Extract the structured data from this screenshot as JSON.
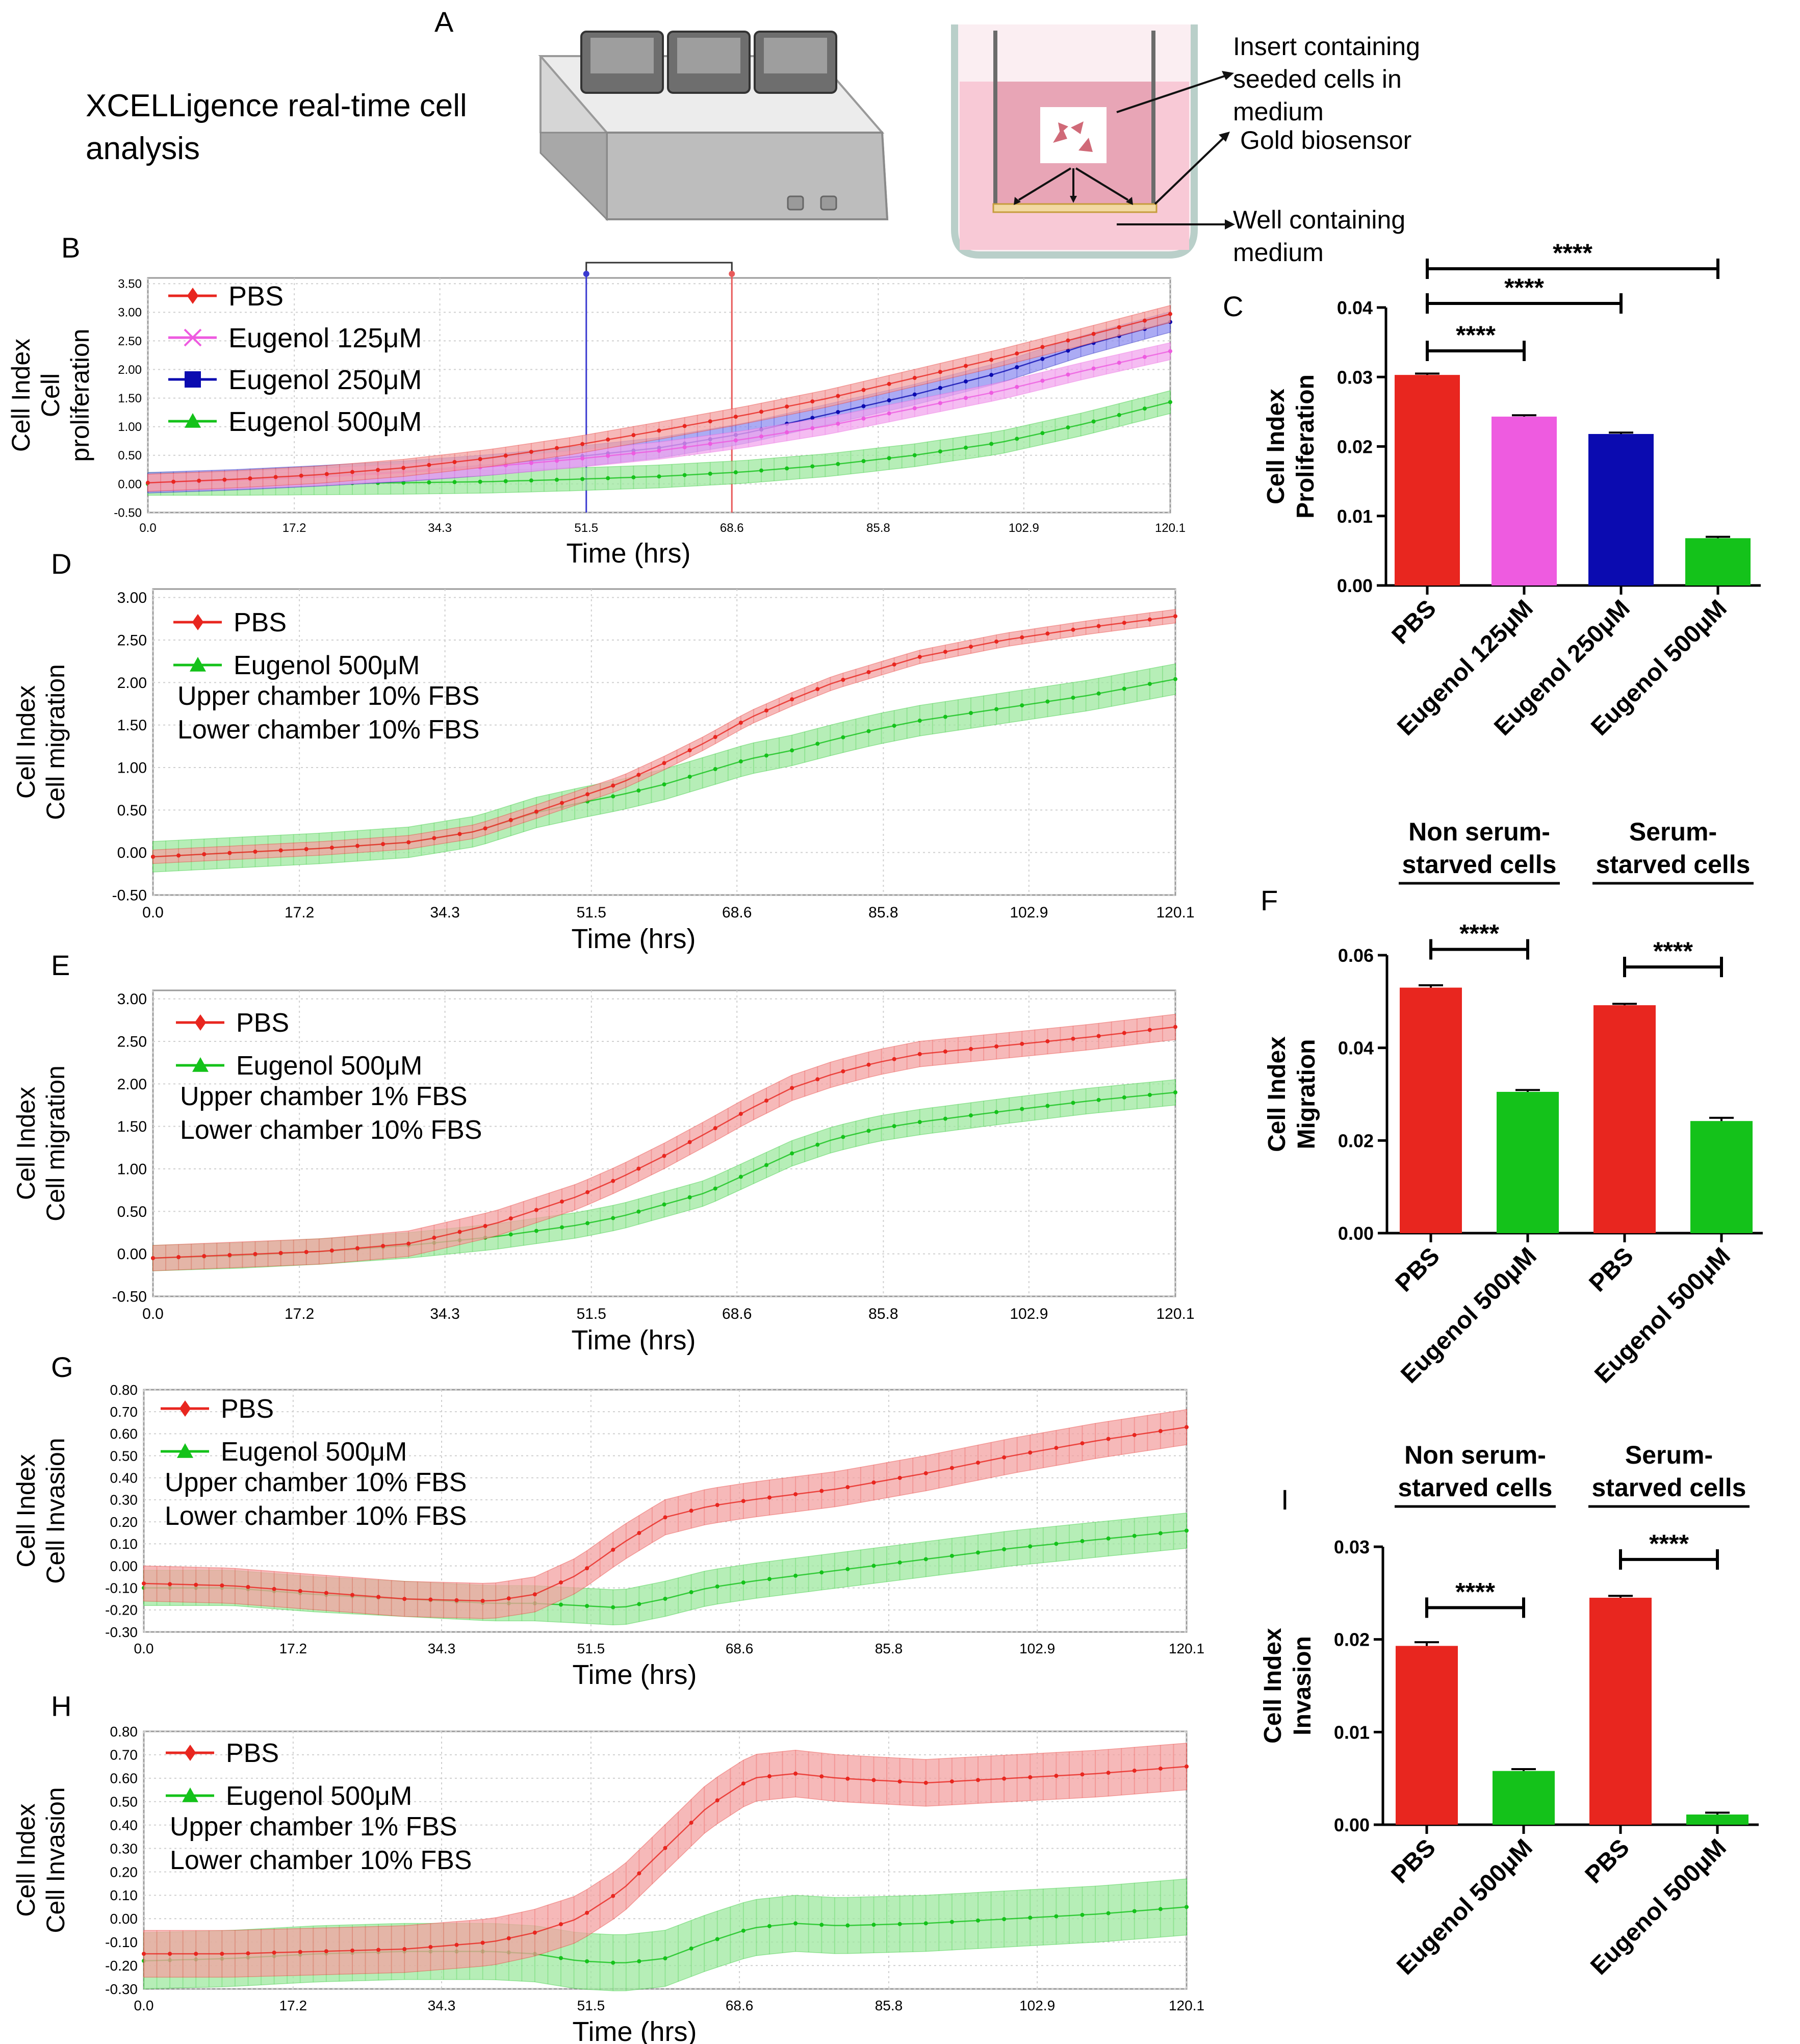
{
  "panel_a": {
    "letter": "A",
    "title_line1": "XCELLigence real-time cell",
    "title_line2": "analysis",
    "label_insert_1": "Insert containing",
    "label_insert_2": "seeded cells in",
    "label_insert_3": "medium",
    "label_gold": "Gold biosensor",
    "label_well_1": "Well containing",
    "label_well_2": "medium"
  },
  "colors": {
    "pbs": "#e8261f",
    "e125": "#ee5be0",
    "e250": "#0b0bb0",
    "e500": "#14c21a",
    "pbs_band": "#f3a2a2",
    "e125_band": "#f2a6ee",
    "e250_band": "#8f8ff0",
    "e500_band": "#9ee89f"
  },
  "chart_data": [
    {
      "id": "B",
      "type": "line",
      "letter": "B",
      "ylabel_1": "Cell Index",
      "ylabel_2": "Cell",
      "ylabel_3": "proliferation",
      "xlabel": "Time (hrs)",
      "xticks": [
        "0.0",
        "17.2",
        "34.3",
        "51.5",
        "68.6",
        "85.8",
        "102.9",
        "120.1"
      ],
      "yticks": [
        "3.50",
        "3.00",
        "2.50",
        "2.00",
        "1.50",
        "1.00",
        "0.50",
        "0.00",
        "-0.50"
      ],
      "xlim": [
        0,
        120.1
      ],
      "ylim": [
        -0.5,
        3.6
      ],
      "markers_x": [
        51.5,
        68.6
      ],
      "legend": [
        "PBS",
        "Eugenol 125μM",
        "Eugenol 250μM",
        "Eugenol 500μM"
      ],
      "notes": [],
      "series": [
        {
          "name": "PBS",
          "x": [
            0,
            10,
            20,
            30,
            40,
            50,
            60,
            70,
            80,
            90,
            100,
            110,
            120.1
          ],
          "values": [
            0.02,
            0.08,
            0.16,
            0.28,
            0.45,
            0.67,
            0.93,
            1.2,
            1.5,
            1.85,
            2.2,
            2.58,
            2.97
          ],
          "err": 0.15
        },
        {
          "name": "Eugenol 125μM",
          "x": [
            0,
            10,
            20,
            30,
            40,
            50,
            60,
            70,
            80,
            90,
            100,
            110,
            120.1
          ],
          "values": [
            0.02,
            0.06,
            0.12,
            0.2,
            0.3,
            0.43,
            0.58,
            0.78,
            1.02,
            1.32,
            1.62,
            1.98,
            2.32
          ],
          "err": 0.15
        },
        {
          "name": "Eugenol 250μM",
          "x": [
            0,
            10,
            20,
            30,
            40,
            50,
            60,
            70,
            80,
            90,
            100,
            110,
            120.1
          ],
          "values": [
            0.02,
            0.07,
            0.14,
            0.22,
            0.33,
            0.47,
            0.63,
            0.88,
            1.22,
            1.56,
            1.94,
            2.42,
            2.83
          ],
          "err": 0.18
        },
        {
          "name": "Eugenol 500μM",
          "x": [
            0,
            10,
            20,
            30,
            40,
            50,
            60,
            70,
            80,
            90,
            100,
            110,
            120.1
          ],
          "values": [
            0.0,
            0.0,
            0.01,
            0.02,
            0.04,
            0.08,
            0.13,
            0.21,
            0.33,
            0.5,
            0.72,
            1.05,
            1.43
          ],
          "err": 0.2
        }
      ]
    },
    {
      "id": "D",
      "type": "line",
      "letter": "D",
      "ylabel_1": "Cell Index",
      "ylabel_2": "Cell migration",
      "ylabel_3": "",
      "xlabel": "Time (hrs)",
      "xticks": [
        "0.0",
        "17.2",
        "34.3",
        "51.5",
        "68.6",
        "85.8",
        "102.9",
        "120.1"
      ],
      "yticks": [
        "3.00",
        "2.50",
        "2.00",
        "1.50",
        "1.00",
        "0.50",
        "0.00",
        "-0.50"
      ],
      "xlim": [
        0,
        120.1
      ],
      "ylim": [
        -0.5,
        3.1
      ],
      "markers_x": [],
      "legend": [
        "PBS",
        "Eugenol 500μM"
      ],
      "notes": [
        "Upper chamber 10% FBS",
        "Lower chamber 10% FBS"
      ],
      "series": [
        {
          "name": "PBS",
          "x": [
            0,
            10,
            20,
            30,
            38,
            45,
            50,
            55,
            60,
            65,
            70,
            75,
            80,
            85,
            90,
            100,
            110,
            120.1
          ],
          "values": [
            -0.05,
            0.0,
            0.05,
            0.12,
            0.25,
            0.48,
            0.65,
            0.82,
            1.05,
            1.3,
            1.58,
            1.8,
            2.0,
            2.15,
            2.3,
            2.5,
            2.65,
            2.78
          ],
          "err": 0.08
        },
        {
          "name": "Eugenol 500μM",
          "x": [
            0,
            10,
            20,
            30,
            38,
            45,
            50,
            55,
            60,
            65,
            70,
            75,
            80,
            85,
            90,
            100,
            110,
            120.1
          ],
          "values": [
            -0.05,
            0.0,
            0.05,
            0.12,
            0.25,
            0.47,
            0.58,
            0.68,
            0.8,
            0.95,
            1.1,
            1.2,
            1.33,
            1.45,
            1.55,
            1.7,
            1.85,
            2.04
          ],
          "err": 0.18
        }
      ]
    },
    {
      "id": "E",
      "type": "line",
      "letter": "E",
      "ylabel_1": "Cell Index",
      "ylabel_2": "Cell migration",
      "ylabel_3": "",
      "xlabel": "Time (hrs)",
      "xticks": [
        "0.0",
        "17.2",
        "34.3",
        "51.5",
        "68.6",
        "85.8",
        "102.9",
        "120.1"
      ],
      "yticks": [
        "3.00",
        "2.50",
        "2.00",
        "1.50",
        "1.00",
        "0.50",
        "0.00",
        "-0.50"
      ],
      "xlim": [
        0,
        120.1
      ],
      "ylim": [
        -0.5,
        3.1
      ],
      "markers_x": [],
      "legend": [
        "PBS",
        "Eugenol 500μM"
      ],
      "notes": [
        "Upper chamber 1% FBS",
        "Lower chamber 10% FBS"
      ],
      "series": [
        {
          "name": "PBS",
          "x": [
            0,
            10,
            20,
            30,
            40,
            50,
            55,
            60,
            65,
            70,
            75,
            80,
            85,
            90,
            100,
            110,
            120.1
          ],
          "values": [
            -0.05,
            -0.01,
            0.03,
            0.12,
            0.35,
            0.68,
            0.9,
            1.15,
            1.42,
            1.7,
            1.95,
            2.12,
            2.25,
            2.35,
            2.45,
            2.55,
            2.67
          ],
          "err": 0.15
        },
        {
          "name": "Eugenol 500μM",
          "x": [
            0,
            10,
            20,
            30,
            40,
            50,
            55,
            60,
            65,
            70,
            75,
            80,
            85,
            90,
            100,
            110,
            120.1
          ],
          "values": [
            -0.05,
            -0.02,
            0.03,
            0.1,
            0.2,
            0.34,
            0.44,
            0.58,
            0.72,
            0.95,
            1.18,
            1.35,
            1.47,
            1.55,
            1.68,
            1.8,
            1.9
          ],
          "err": 0.15
        }
      ]
    },
    {
      "id": "G",
      "type": "line",
      "letter": "G",
      "ylabel_1": "Cell Index",
      "ylabel_2": "Cell Invasion",
      "ylabel_3": "",
      "xlabel": "Time (hrs)",
      "xticks": [
        "0.0",
        "17.2",
        "34.3",
        "51.5",
        "68.6",
        "85.8",
        "102.9",
        "120.1"
      ],
      "yticks": [
        "0.80",
        "0.70",
        "0.60",
        "0.50",
        "0.40",
        "0.30",
        "0.20",
        "0.10",
        "0.00",
        "-0.10",
        "-0.20",
        "-0.30"
      ],
      "xlim": [
        0,
        120.1
      ],
      "ylim": [
        -0.3,
        0.8
      ],
      "markers_x": [],
      "legend": [
        "PBS",
        "Eugenol 500μM"
      ],
      "notes": [
        "Upper chamber 10% FBS",
        "Lower chamber 10% FBS"
      ],
      "series": [
        {
          "name": "PBS",
          "x": [
            0,
            10,
            20,
            30,
            40,
            45,
            50,
            55,
            60,
            65,
            70,
            80,
            90,
            100,
            110,
            120.1
          ],
          "values": [
            -0.08,
            -0.09,
            -0.12,
            -0.15,
            -0.16,
            -0.13,
            -0.04,
            0.1,
            0.22,
            0.27,
            0.3,
            0.35,
            0.42,
            0.5,
            0.57,
            0.63
          ],
          "err": 0.08
        },
        {
          "name": "Eugenol 500μM",
          "x": [
            0,
            10,
            20,
            30,
            40,
            45,
            50,
            55,
            60,
            65,
            70,
            80,
            90,
            100,
            110,
            120.1
          ],
          "values": [
            -0.1,
            -0.1,
            -0.13,
            -0.15,
            -0.17,
            -0.17,
            -0.18,
            -0.19,
            -0.15,
            -0.1,
            -0.07,
            -0.02,
            0.03,
            0.08,
            0.12,
            0.16
          ],
          "err": 0.08
        }
      ]
    },
    {
      "id": "H",
      "type": "line",
      "letter": "H",
      "ylabel_1": "Cell Index",
      "ylabel_2": "Cell Invasion",
      "ylabel_3": "",
      "xlabel": "Time (hrs)",
      "xticks": [
        "0.0",
        "17.2",
        "34.3",
        "51.5",
        "68.6",
        "85.8",
        "102.9",
        "120.1"
      ],
      "yticks": [
        "0.80",
        "0.70",
        "0.60",
        "0.50",
        "0.40",
        "0.30",
        "0.20",
        "0.10",
        "0.00",
        "-0.10",
        "-0.20",
        "-0.30"
      ],
      "xlim": [
        0,
        120.1
      ],
      "ylim": [
        -0.3,
        0.8
      ],
      "markers_x": [],
      "legend": [
        "PBS",
        "Eugenol 500μM"
      ],
      "notes": [
        "Upper chamber 1% FBS",
        "Lower chamber 10% FBS"
      ],
      "series": [
        {
          "name": "PBS",
          "x": [
            0,
            10,
            20,
            30,
            40,
            45,
            50,
            55,
            60,
            65,
            70,
            75,
            80,
            90,
            100,
            110,
            120.1
          ],
          "values": [
            -0.15,
            -0.15,
            -0.14,
            -0.13,
            -0.1,
            -0.06,
            0.0,
            0.12,
            0.3,
            0.48,
            0.6,
            0.62,
            0.6,
            0.58,
            0.6,
            0.62,
            0.65
          ],
          "err": 0.1
        },
        {
          "name": "Eugenol 500μM",
          "x": [
            0,
            10,
            20,
            30,
            40,
            45,
            50,
            55,
            60,
            65,
            70,
            75,
            80,
            90,
            100,
            110,
            120.1
          ],
          "values": [
            -0.18,
            -0.17,
            -0.15,
            -0.14,
            -0.14,
            -0.15,
            -0.18,
            -0.19,
            -0.17,
            -0.1,
            -0.04,
            -0.02,
            -0.03,
            -0.02,
            0.0,
            0.02,
            0.05
          ],
          "err": 0.12
        }
      ]
    },
    {
      "id": "C",
      "type": "bar",
      "letter": "C",
      "ylabel_1": "Cell Index",
      "ylabel_2": "Proliferation",
      "categories": [
        "PBS",
        "Eugenol 125μM",
        "Eugenol 250μM",
        "Eugenol 500μM"
      ],
      "values": [
        0.0303,
        0.0243,
        0.0218,
        0.0068
      ],
      "errors": [
        0.0002,
        0.0002,
        0.0002,
        0.0002
      ],
      "yticks": [
        "0.00",
        "0.01",
        "0.02",
        "0.03",
        "0.04"
      ],
      "ytick_values": [
        0,
        0.01,
        0.02,
        0.03,
        0.04
      ],
      "ylim": [
        0,
        0.04
      ],
      "groups": [],
      "sig": [
        {
          "from": 0,
          "to": 1,
          "label": "****"
        },
        {
          "from": 0,
          "to": 2,
          "label": "****"
        },
        {
          "from": 0,
          "to": 3,
          "label": "****"
        }
      ]
    },
    {
      "id": "F",
      "type": "bar",
      "letter": "F",
      "ylabel_1": "Cell Index",
      "ylabel_2": "Migration",
      "categories": [
        "PBS",
        "Eugenol 500μM",
        "PBS",
        "Eugenol 500μM"
      ],
      "values": [
        0.053,
        0.0305,
        0.0492,
        0.0242
      ],
      "errors": [
        0.0005,
        0.0004,
        0.0003,
        0.0007
      ],
      "yticks": [
        "0.00",
        "0.02",
        "0.04",
        "0.06"
      ],
      "ytick_values": [
        0,
        0.02,
        0.04,
        0.06
      ],
      "ylim": [
        0,
        0.06
      ],
      "groups": [
        {
          "line1": "Non serum-",
          "line2": "starved cells",
          "bars": [
            0,
            1
          ]
        },
        {
          "line1": "Serum-",
          "line2": "starved cells",
          "bars": [
            2,
            3
          ]
        }
      ],
      "sig": [
        {
          "from": 0,
          "to": 1,
          "label": "****"
        },
        {
          "from": 2,
          "to": 3,
          "label": "****"
        }
      ]
    },
    {
      "id": "I",
      "type": "bar",
      "letter": "I",
      "ylabel_1": "Cell Index",
      "ylabel_2": "Invasion",
      "categories": [
        "PBS",
        "Eugenol 500μM",
        "PBS",
        "Eugenol 500μM"
      ],
      "values": [
        0.0193,
        0.0058,
        0.0245,
        0.0011
      ],
      "errors": [
        0.0004,
        0.0002,
        0.0002,
        0.0002
      ],
      "yticks": [
        "0.00",
        "0.01",
        "0.02",
        "0.03"
      ],
      "ytick_values": [
        0,
        0.01,
        0.02,
        0.03
      ],
      "ylim": [
        0,
        0.03
      ],
      "groups": [
        {
          "line1": "Non serum-",
          "line2": "starved cells",
          "bars": [
            0,
            1
          ]
        },
        {
          "line1": "Serum-",
          "line2": "starved cells",
          "bars": [
            2,
            3
          ]
        }
      ],
      "sig": [
        {
          "from": 0,
          "to": 1,
          "label": "****"
        },
        {
          "from": 2,
          "to": 3,
          "label": "****"
        }
      ]
    }
  ]
}
